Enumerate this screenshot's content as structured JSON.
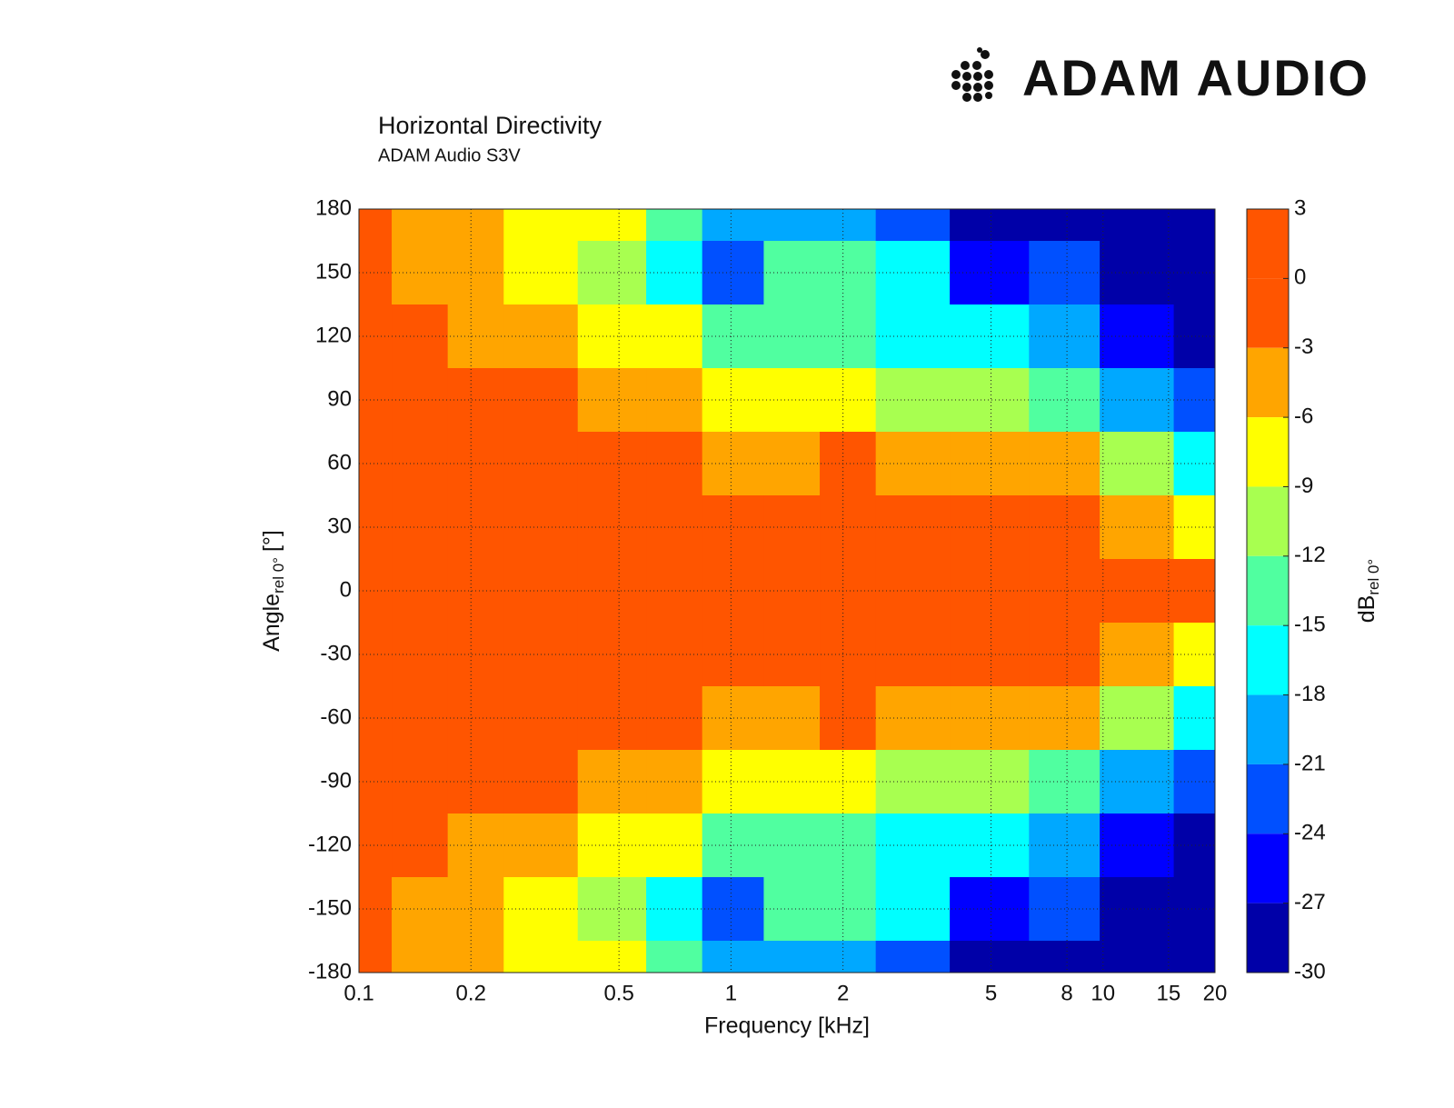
{
  "logo": "ADAM AUDIO",
  "chart_data": {
    "type": "heatmap",
    "title": "Horizontal Directivity",
    "subtitle": "ADAM Audio S3V",
    "x_label": "Frequency [kHz]",
    "y_label": "Angle",
    "y_label_sub": "rel 0°",
    "y_label_suffix": "[°]",
    "x": [
      0.1,
      0.15,
      0.2,
      0.3,
      0.5,
      0.7,
      1,
      1.5,
      2,
      3,
      5,
      8,
      12,
      20
    ],
    "y": [
      180,
      150,
      120,
      90,
      60,
      30,
      0,
      -30,
      -60,
      -90,
      -120,
      -150,
      -180
    ],
    "z": [
      [
        -1,
        -4,
        -5,
        -7,
        -8,
        -14,
        -20,
        -21,
        -19,
        -24,
        -28,
        -29,
        -29,
        -29
      ],
      [
        -1,
        -4,
        -6,
        -8,
        -12,
        -17,
        -23,
        -14,
        -14,
        -18,
        -25,
        -23,
        -28,
        -29
      ],
      [
        -1,
        -3,
        -5,
        -6,
        -8,
        -9,
        -15,
        -15,
        -14,
        -17,
        -18,
        -20,
        -26,
        -29
      ],
      [
        0,
        -1,
        -2,
        -2,
        -4,
        -5,
        -8,
        -8,
        -8,
        -10,
        -12,
        -15,
        -20,
        -24
      ],
      [
        0,
        0,
        -1,
        -1,
        -2,
        -3,
        -5,
        -5,
        -3,
        -5,
        -5,
        -5,
        -10,
        -18
      ],
      [
        0,
        0,
        0,
        0,
        0,
        -1,
        -2,
        -2,
        -1,
        -2,
        -3,
        -2,
        -4,
        -8
      ],
      [
        0,
        0,
        0,
        0,
        0,
        0,
        0,
        0,
        0,
        0,
        0,
        -1,
        -1,
        -2
      ],
      [
        0,
        0,
        0,
        0,
        0,
        -1,
        -2,
        -2,
        -1,
        -2,
        -3,
        -2,
        -4,
        -8
      ],
      [
        0,
        0,
        -1,
        -1,
        -2,
        -3,
        -5,
        -5,
        -3,
        -5,
        -5,
        -5,
        -10,
        -18
      ],
      [
        0,
        -1,
        -2,
        -2,
        -4,
        -5,
        -8,
        -8,
        -8,
        -10,
        -12,
        -15,
        -20,
        -24
      ],
      [
        -1,
        -3,
        -5,
        -6,
        -8,
        -9,
        -15,
        -15,
        -14,
        -17,
        -18,
        -20,
        -26,
        -29
      ],
      [
        -1,
        -4,
        -6,
        -8,
        -12,
        -17,
        -23,
        -14,
        -14,
        -18,
        -25,
        -23,
        -28,
        -29
      ],
      [
        -1,
        -4,
        -5,
        -7,
        -8,
        -14,
        -20,
        -21,
        -19,
        -24,
        -28,
        -29,
        -29,
        -29
      ]
    ],
    "log_x": true,
    "xlim": [
      0.1,
      20
    ],
    "xticks": [
      0.1,
      0.2,
      0.5,
      1,
      2,
      5,
      8,
      10,
      15,
      20
    ],
    "ylim": [
      -180,
      180
    ],
    "yticks": [
      180,
      150,
      120,
      90,
      60,
      30,
      0,
      -30,
      -60,
      -90,
      -120,
      -150,
      -180
    ],
    "grid": true,
    "colorbar": {
      "label": "dB",
      "label_sub": "rel 0°",
      "ticks": [
        3,
        0,
        -3,
        -6,
        -9,
        -12,
        -15,
        -18,
        -21,
        -24,
        -27,
        -30
      ],
      "colors": [
        "#ff5500",
        "#ff5500",
        "#ffa500",
        "#ffff00",
        "#a8ff50",
        "#50ffa0",
        "#00ffff",
        "#00a8ff",
        "#0050ff",
        "#0000ff",
        "#0000a8"
      ]
    }
  }
}
